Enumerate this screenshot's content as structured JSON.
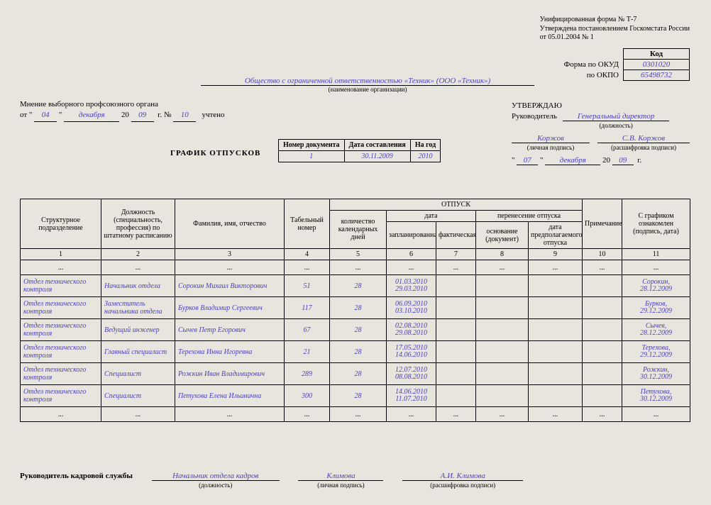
{
  "formNote": {
    "l1": "Унифицированная форма № Т-7",
    "l2": "Утверждена постановлением Госкомстата России",
    "l3": "от 05.01.2004 № 1"
  },
  "codes": {
    "hdr": "Код",
    "okudLbl": "Форма по ОКУД",
    "okudVal": "0301020",
    "okpoLbl": "по ОКПО",
    "okpoVal": "65498732"
  },
  "org": {
    "name": "Общество с ограниченной ответственностью «Техник» (ООО «Техник»)",
    "sub": "(наименование организации)"
  },
  "union": {
    "l1": "Мнение выборного профсоюзного органа",
    "from": "от",
    "d": "04",
    "m": "декабря",
    "yPref": "20",
    "y": "09",
    "gNo": "г. №",
    "no": "10",
    "acc": "учтено"
  },
  "approve": {
    "title": "УТВЕРЖДАЮ",
    "headLbl": "Руководитель",
    "headPos": "Генеральный директор",
    "posSub": "(должность)",
    "sig": "Коржов",
    "sigSub": "(личная подпись)",
    "dec": "С.В. Коржов",
    "decSub": "(расшифровка подписи)",
    "d": "07",
    "m": "декабря",
    "yPref": "20",
    "y": "09",
    "g": "г."
  },
  "title": "ГРАФИК ОТПУСКОВ",
  "docinfo": {
    "h1": "Номер документа",
    "v1": "1",
    "h2": "Дата составления",
    "v2": "30.11.2009",
    "h3": "На год",
    "v3": "2010"
  },
  "thead": {
    "c1": "Структурное подразделение",
    "c2": "Должность (специальность, профессия) по штатному расписанию",
    "c3": "Фамилия, имя, отчество",
    "c4": "Табельный номер",
    "g5": "ОТПУСК",
    "c5": "количество календарных дней",
    "g6": "дата",
    "c6": "запланированная",
    "c7": "фактическая",
    "g8": "перенесение отпуска",
    "c8": "основание (документ)",
    "c9": "дата предполагаемого отпуска",
    "c10": "Примечание",
    "c11": "С графиком ознакомлен (подпись, дата)"
  },
  "numrow": [
    "1",
    "2",
    "3",
    "4",
    "5",
    "6",
    "7",
    "8",
    "9",
    "10",
    "11"
  ],
  "ell": "...",
  "rows": [
    {
      "dep": "Отдел технического контроля",
      "pos": "Начальник отдела",
      "fio": "Сорокин Михаил Викторович",
      "tab": "51",
      "days": "28",
      "plan": "01.03.2010\n29.03.2010",
      "fact": "",
      "basis": "",
      "tdate": "",
      "note": "",
      "sign": "Сорокин,\n28.12.2009"
    },
    {
      "dep": "Отдел технического контроля",
      "pos": "Заместитель начальника отдела",
      "fio": "Бурков Владимир Сергеевич",
      "tab": "117",
      "days": "28",
      "plan": "06.09.2010\n03.10.2010",
      "fact": "",
      "basis": "",
      "tdate": "",
      "note": "",
      "sign": "Бурков,\n29.12.2009"
    },
    {
      "dep": "Отдел технического контроля",
      "pos": "Ведущий инженер",
      "fio": "Сычев Петр Егорович",
      "tab": "67",
      "days": "28",
      "plan": "02.08.2010\n29.08.2010",
      "fact": "",
      "basis": "",
      "tdate": "",
      "note": "",
      "sign": "Сычев,\n28.12.2009"
    },
    {
      "dep": "Отдел технического контроля",
      "pos": "Главный специалист",
      "fio": "Терехова Инна Игоревна",
      "tab": "21",
      "days": "28",
      "plan": "17.05.2010\n14.06.2010",
      "fact": "",
      "basis": "",
      "tdate": "",
      "note": "",
      "sign": "Терехова,\n29.12.2009"
    },
    {
      "dep": "Отдел технического контроля",
      "pos": "Специалист",
      "fio": "Рожкин Иван Владимирович",
      "tab": "289",
      "days": "28",
      "plan": "12.07.2010\n08.08.2010",
      "fact": "",
      "basis": "",
      "tdate": "",
      "note": "",
      "sign": "Рожкин,\n30.12.2009"
    },
    {
      "dep": "Отдел технического контроля",
      "pos": "Специалист",
      "fio": "Петухова Елена Ильинична",
      "tab": "300",
      "days": "28",
      "plan": "14.06.2010\n11.07.2010",
      "fact": "",
      "basis": "",
      "tdate": "",
      "note": "",
      "sign": "Петухова,\n30.12.2009"
    }
  ],
  "footer": {
    "label": "Руководитель кадровой службы",
    "pos": "Начальник отдела кадров",
    "posSub": "(должность)",
    "sig": "Климова",
    "sigSub": "(личная подпись)",
    "dec": "А.И. Климова",
    "decSub": "(расшифровка подписи)"
  },
  "widths": {
    "c1": 114,
    "c2": 104,
    "c3": 154,
    "c4": 64,
    "c5": 80,
    "c6": 70,
    "c7": 56,
    "c8": 74,
    "c9": 76,
    "c10": 56,
    "c11": 96
  }
}
